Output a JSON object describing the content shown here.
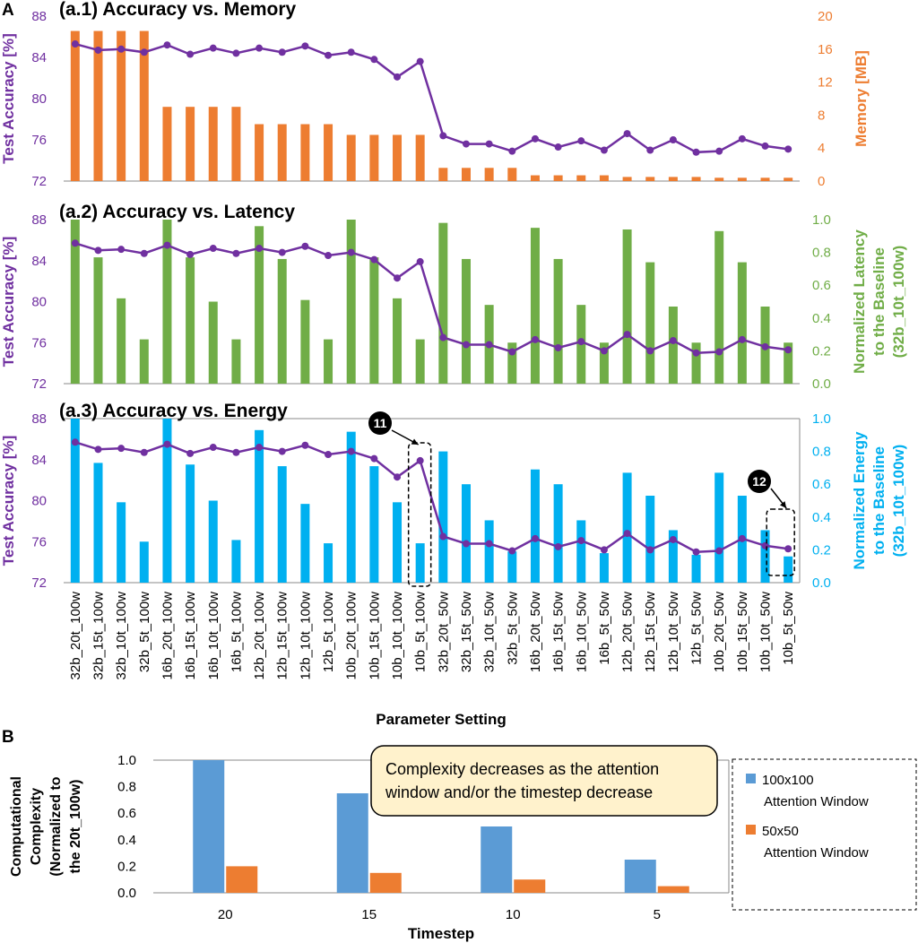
{
  "panel_labels": {
    "a": "A",
    "b": "B"
  },
  "colors": {
    "accuracy": "#7030a0",
    "memory": "#ed7d31",
    "latency": "#70ad47",
    "energy": "#00b0f0",
    "bar_100": "#5b9bd5",
    "bar_50": "#ed7d31",
    "note_bg": "#fff2cc"
  },
  "chart_data": [
    {
      "id": "a1",
      "type": "bar+line",
      "title": "(a.1) Accuracy vs. Memory",
      "ylabel_left": "Test Accuracy [%]",
      "ylabel_right": "Memory [MB]",
      "ylim_left": [
        72,
        88
      ],
      "yticks_left": [
        "72",
        "76",
        "80",
        "84",
        "88"
      ],
      "ylim_right": [
        0,
        20
      ],
      "yticks_right": [
        "0",
        "4",
        "8",
        "12",
        "16",
        "20"
      ],
      "bar_values": [
        18.2,
        18.2,
        18.2,
        18.2,
        9.0,
        9.0,
        9.0,
        9.0,
        6.9,
        6.9,
        6.9,
        6.9,
        5.6,
        5.6,
        5.6,
        5.6,
        1.6,
        1.6,
        1.6,
        1.6,
        0.7,
        0.7,
        0.7,
        0.7,
        0.5,
        0.5,
        0.5,
        0.5,
        0.4,
        0.4,
        0.4,
        0.4
      ],
      "accuracy": [
        85.3,
        84.7,
        84.8,
        84.5,
        85.2,
        84.3,
        84.9,
        84.4,
        84.9,
        84.5,
        85.1,
        84.2,
        84.5,
        83.8,
        82.1,
        83.6,
        76.4,
        75.6,
        75.6,
        74.9,
        76.1,
        75.3,
        75.9,
        75.0,
        76.6,
        75.0,
        76.0,
        74.8,
        74.9,
        76.1,
        75.4,
        75.1
      ]
    },
    {
      "id": "a2",
      "type": "bar+line",
      "title": "(a.2) Accuracy vs. Latency",
      "ylabel_left": "Test Accuracy [%]",
      "ylabel_right_lines": [
        "Normalized Latency",
        "to the Baseline",
        "(32b_10t_100w)"
      ],
      "ylim_left": [
        72,
        88
      ],
      "yticks_left": [
        "72",
        "76",
        "80",
        "84",
        "88"
      ],
      "ylim_right": [
        0,
        1
      ],
      "yticks_right": [
        "0.0",
        "0.2",
        "0.4",
        "0.6",
        "0.8",
        "1.0"
      ],
      "bar_values": [
        1.0,
        0.77,
        0.52,
        0.27,
        1.0,
        0.77,
        0.5,
        0.27,
        0.96,
        0.76,
        0.51,
        0.27,
        1.0,
        0.77,
        0.52,
        0.27,
        0.98,
        0.76,
        0.48,
        0.25,
        0.95,
        0.76,
        0.48,
        0.25,
        0.94,
        0.74,
        0.47,
        0.25,
        0.93,
        0.74,
        0.47,
        0.25
      ],
      "accuracy": [
        85.7,
        85.0,
        85.1,
        84.7,
        85.5,
        84.6,
        85.2,
        84.7,
        85.2,
        84.8,
        85.4,
        84.5,
        84.8,
        84.1,
        82.3,
        83.9,
        76.5,
        75.8,
        75.8,
        75.1,
        76.3,
        75.5,
        76.1,
        75.2,
        76.8,
        75.2,
        76.2,
        75.0,
        75.1,
        76.3,
        75.6,
        75.3
      ]
    },
    {
      "id": "a3",
      "type": "bar+line",
      "title": "(a.3) Accuracy vs. Energy",
      "ylabel_left": "Test Accuracy [%]",
      "ylabel_right_lines": [
        "Normalized Energy",
        "to the Baseline",
        "(32b_10t_100w)"
      ],
      "ylim_left": [
        72,
        88
      ],
      "yticks_left": [
        "72",
        "76",
        "80",
        "84",
        "88"
      ],
      "ylim_right": [
        0,
        1
      ],
      "yticks_right": [
        "0.0",
        "0.2",
        "0.4",
        "0.6",
        "0.8",
        "1.0"
      ],
      "bar_values": [
        1.0,
        0.73,
        0.49,
        0.25,
        1.0,
        0.72,
        0.5,
        0.26,
        0.93,
        0.71,
        0.48,
        0.24,
        0.92,
        0.71,
        0.49,
        0.24,
        0.8,
        0.6,
        0.38,
        0.19,
        0.69,
        0.6,
        0.38,
        0.18,
        0.67,
        0.53,
        0.32,
        0.17,
        0.67,
        0.53,
        0.32,
        0.16
      ],
      "accuracy": [
        85.7,
        85.0,
        85.1,
        84.7,
        85.5,
        84.6,
        85.2,
        84.7,
        85.2,
        84.8,
        85.4,
        84.5,
        84.8,
        84.1,
        82.3,
        83.9,
        76.5,
        75.8,
        75.8,
        75.1,
        76.3,
        75.5,
        76.1,
        75.2,
        76.8,
        75.2,
        76.2,
        75.0,
        75.1,
        76.3,
        75.6,
        75.3
      ],
      "callouts": [
        {
          "label": "11",
          "index": 15
        },
        {
          "label": "12",
          "index": 31
        }
      ]
    }
  ],
  "categories": [
    "32b_20t_100w",
    "32b_15t_100w",
    "32b_10t_100w",
    "32b_5t_100w",
    "16b_20t_100w",
    "16b_15t_100w",
    "16b_10t_100w",
    "16b_5t_100w",
    "12b_20t_100w",
    "12b_15t_100w",
    "12b_10t_100w",
    "12b_5t_100w",
    "10b_20t_100w",
    "10b_15t_100w",
    "10b_10t_100w",
    "10b_5t_100w",
    "32b_20t_50w",
    "32b_15t_50w",
    "32b_10t_50w",
    "32b_5t_50w",
    "16b_20t_50w",
    "16b_15t_50w",
    "16b_10t_50w",
    "16b_5t_50w",
    "12b_20t_50w",
    "12b_15t_50w",
    "12b_10t_50w",
    "12b_5t_50w",
    "10b_20t_50w",
    "10b_15t_50w",
    "10b_10t_50w",
    "10b_5t_50w"
  ],
  "xlabel": "Parameter Setting",
  "chart_b": {
    "type": "bar",
    "ylabel_lines": [
      "Computational",
      "Complexity",
      "(Normalized to",
      "the 20t_100w)"
    ],
    "xlabel": "Timestep",
    "categories": [
      "20",
      "15",
      "10",
      "5"
    ],
    "ylim": [
      0,
      1
    ],
    "yticks": [
      "0.0",
      "0.2",
      "0.4",
      "0.6",
      "0.8",
      "1.0"
    ],
    "series": [
      {
        "name_lines": [
          "100x100",
          "Attention Window"
        ],
        "values": [
          1.0,
          0.75,
          0.5,
          0.25
        ]
      },
      {
        "name_lines": [
          "50x50",
          "Attention Window"
        ],
        "values": [
          0.2,
          0.15,
          0.1,
          0.05
        ]
      }
    ],
    "note_lines": [
      "Complexity decreases as the attention",
      "window and/or the timestep decrease"
    ]
  }
}
